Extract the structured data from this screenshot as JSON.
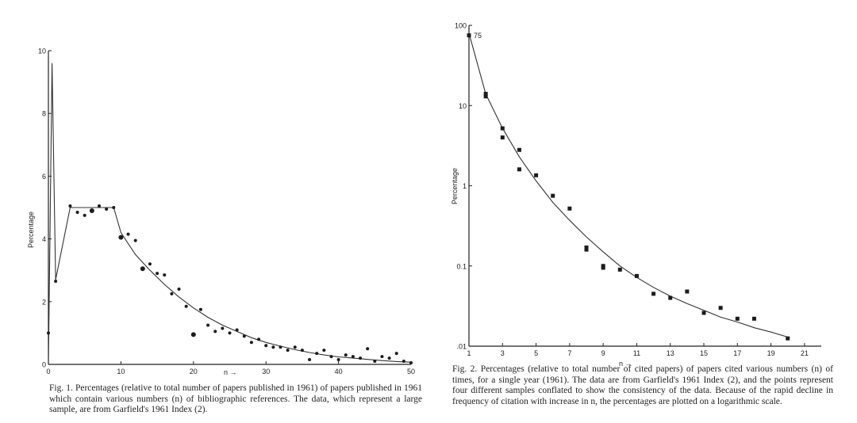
{
  "chart_data": [
    {
      "type": "scatter",
      "title": "",
      "xlabel": "n →",
      "ylabel": "Percentage",
      "xlim": [
        0,
        50
      ],
      "ylim": [
        0,
        10
      ],
      "x_ticks": [
        0,
        10,
        20,
        30,
        40,
        50
      ],
      "y_ticks": [
        0,
        2,
        4,
        6,
        8,
        10
      ],
      "grid": false,
      "legend": "none",
      "line": {
        "x": [
          0,
          0.5,
          1,
          3,
          9,
          10,
          12,
          14,
          16,
          18,
          20,
          22,
          24,
          26,
          28,
          30,
          32,
          34,
          36,
          38,
          40,
          42,
          44,
          46,
          48,
          50
        ],
        "y": [
          0,
          9.6,
          2.7,
          5.0,
          5.0,
          4.2,
          3.5,
          3.0,
          2.55,
          2.15,
          1.8,
          1.5,
          1.25,
          1.05,
          0.85,
          0.7,
          0.58,
          0.47,
          0.38,
          0.3,
          0.24,
          0.2,
          0.16,
          0.12,
          0.09,
          0.07
        ]
      },
      "points": {
        "x": [
          0,
          1,
          3,
          4,
          5,
          6,
          7,
          8,
          9,
          10,
          11,
          12,
          13,
          14,
          15,
          16,
          17,
          18,
          19,
          20,
          21,
          22,
          23,
          24,
          25,
          26,
          27,
          28,
          29,
          30,
          31,
          32,
          33,
          34,
          35,
          36,
          37,
          38,
          39,
          40,
          41,
          42,
          43,
          44,
          45,
          46,
          47,
          48,
          49,
          50
        ],
        "y": [
          1.0,
          2.65,
          5.05,
          4.85,
          4.75,
          4.9,
          5.05,
          4.95,
          5.0,
          4.05,
          4.15,
          3.95,
          3.05,
          3.2,
          2.9,
          2.85,
          2.25,
          2.4,
          1.85,
          0.95,
          1.75,
          1.25,
          1.05,
          1.15,
          1.0,
          1.1,
          0.9,
          0.7,
          0.8,
          0.6,
          0.55,
          0.55,
          0.45,
          0.55,
          0.45,
          0.15,
          0.35,
          0.45,
          0.25,
          0.15,
          0.3,
          0.25,
          0.2,
          0.5,
          0.1,
          0.25,
          0.2,
          0.35,
          0.1,
          0.05
        ]
      },
      "caption": "Fig. 1. Percentages (relative to total number of papers published in 1961) of papers published in 1961 which contain various numbers (n) of bibliographic references. The data, which represent a large sample, are from Garfield's 1961 Index (2)."
    },
    {
      "type": "scatter",
      "title": "",
      "xlabel": "n →",
      "ylabel": "Percentage",
      "log_y": true,
      "xlim": [
        1,
        22
      ],
      "ylim": [
        0.01,
        100
      ],
      "x_ticks": [
        1,
        3,
        5,
        7,
        9,
        11,
        13,
        15,
        17,
        19,
        21
      ],
      "y_ticks": [
        100,
        10,
        1,
        0.1,
        0.01
      ],
      "y_tick_labels": [
        "100",
        "10",
        "1",
        "0.1",
        ".01"
      ],
      "grid": false,
      "legend": "none",
      "annotation": "75",
      "line": {
        "x": [
          1,
          2,
          3,
          4,
          5,
          6,
          7,
          8,
          9,
          10,
          11,
          12,
          13,
          14,
          15,
          16,
          17,
          18,
          19,
          20
        ],
        "y": [
          80,
          14,
          5.2,
          2.3,
          1.15,
          0.62,
          0.37,
          0.23,
          0.15,
          0.1,
          0.072,
          0.054,
          0.042,
          0.034,
          0.028,
          0.023,
          0.02,
          0.017,
          0.015,
          0.013
        ]
      },
      "points": {
        "x": [
          1,
          2,
          2,
          3,
          3,
          4,
          4,
          5,
          6,
          7,
          8,
          8,
          9,
          9,
          10,
          11,
          12,
          13,
          14,
          15,
          16,
          17,
          18,
          20
        ],
        "y": [
          75,
          13,
          14,
          5.2,
          4.0,
          2.8,
          1.6,
          1.35,
          0.75,
          0.52,
          0.16,
          0.17,
          0.095,
          0.1,
          0.09,
          0.075,
          0.045,
          0.04,
          0.048,
          0.026,
          0.03,
          0.022,
          0.022,
          0.0125
        ]
      },
      "caption": "Fig. 2. Percentages (relative to total number of cited papers) of papers cited various numbers (n) of times, for a single year (1961). The data are from Garfield's 1961 Index (2), and the points represent four different samples conflated to show the consistency of the data. Because of the rapid decline in frequency of citation with increase in n, the percentages are plotted on a logarithmic scale."
    }
  ]
}
